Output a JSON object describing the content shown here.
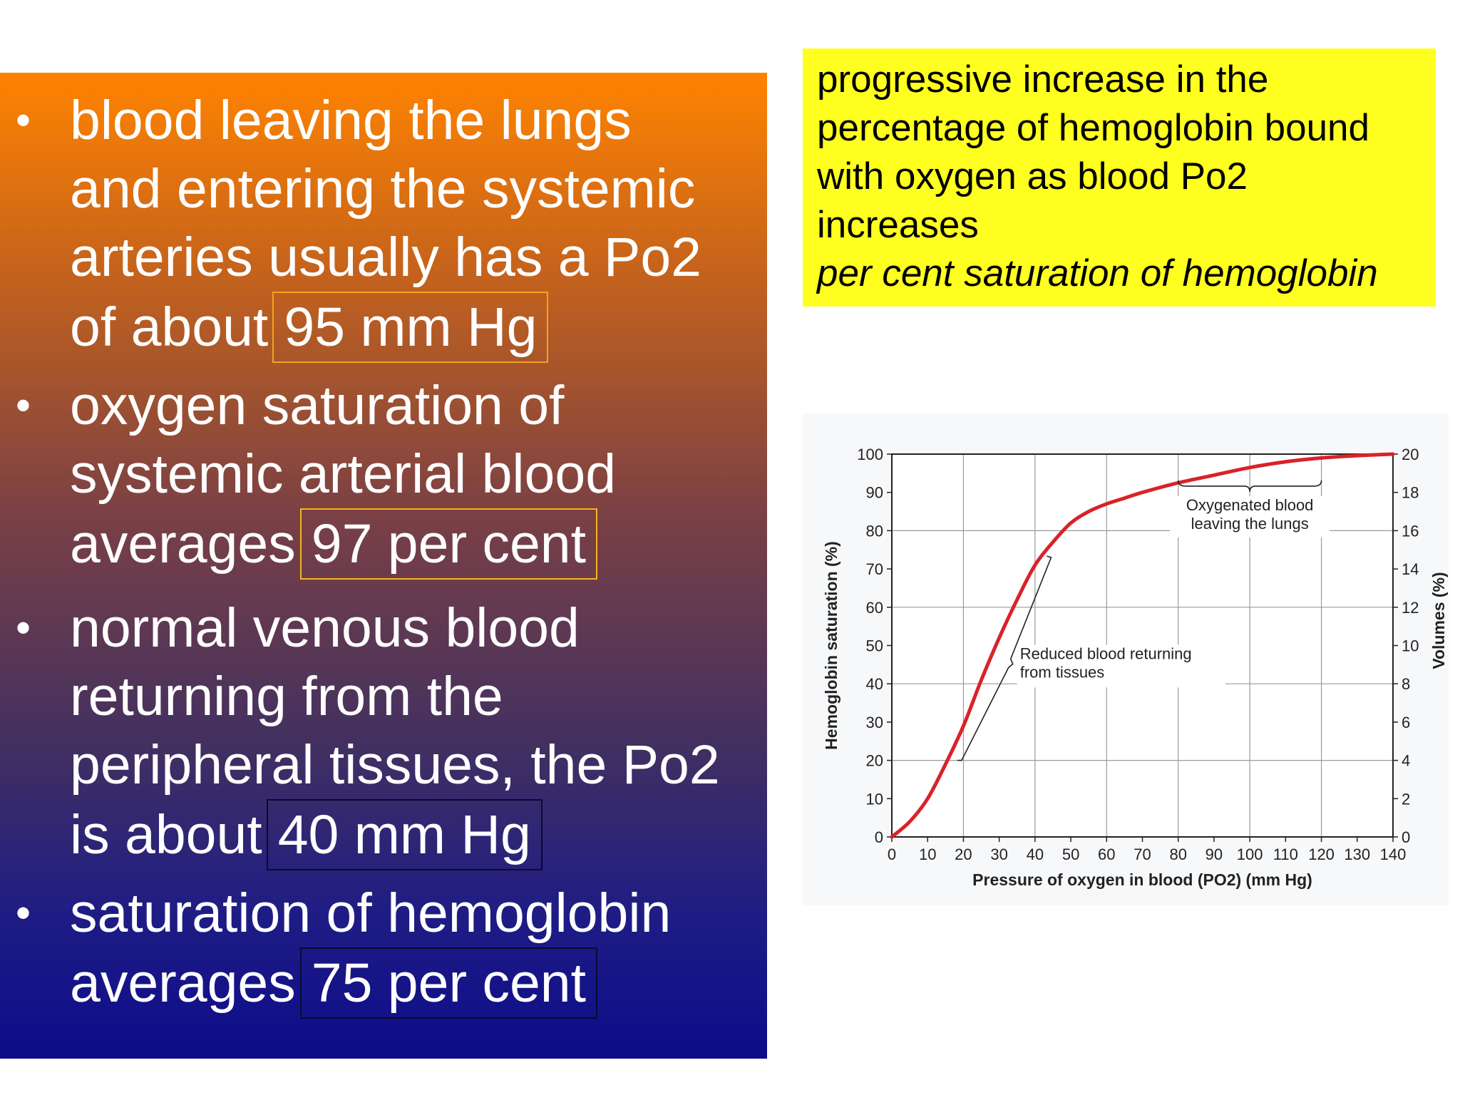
{
  "bullets": [
    {
      "lines": [
        "blood leaving the lungs",
        "and entering the systemic",
        "arteries usually has a Po2"
      ],
      "tail_prefix": "of about",
      "highlight": "95 mm Hg"
    },
    {
      "lines": [
        "oxygen saturation of",
        "systemic arterial blood"
      ],
      "tail_prefix": "averages",
      "highlight": "97 per cent"
    },
    {
      "lines": [
        "normal venous blood",
        "returning from the",
        "peripheral tissues, the Po2"
      ],
      "tail_prefix": "is about",
      "highlight": "40 mm Hg"
    },
    {
      "lines": [
        "saturation of hemoglobin"
      ],
      "tail_prefix": "averages",
      "highlight": "75 per cent"
    }
  ],
  "note": {
    "lines": [
      "progressive increase in the",
      "percentage of hemoglobin bound",
      "with oxygen as blood Po2",
      "increases"
    ],
    "italic_line": "per cent saturation of hemoglobin",
    "background_color": "#ffff1f"
  },
  "chart_data": {
    "type": "line",
    "title": "",
    "xlabel": "Pressure of oxygen in blood (PO2) (mm Hg)",
    "ylabel": "Hemoglobin saturation (%)",
    "y2label": "Volumes (%)",
    "xlim": [
      0,
      140
    ],
    "ylim": [
      0,
      100
    ],
    "y2lim": [
      0,
      20
    ],
    "xticks": [
      0,
      10,
      20,
      30,
      40,
      50,
      60,
      70,
      80,
      90,
      100,
      110,
      120,
      130,
      140
    ],
    "yticks": [
      0,
      10,
      20,
      30,
      40,
      50,
      60,
      70,
      80,
      90,
      100
    ],
    "y2ticks": [
      0,
      2,
      4,
      6,
      8,
      10,
      12,
      14,
      16,
      18,
      20
    ],
    "grid": true,
    "series": [
      {
        "name": "",
        "color": "#d92229",
        "x": [
          0,
          5,
          10,
          15,
          20,
          25,
          30,
          35,
          40,
          45,
          50,
          55,
          60,
          65,
          70,
          80,
          90,
          100,
          110,
          120,
          130,
          140
        ],
        "y": [
          0,
          4,
          10,
          19,
          29,
          41,
          52,
          62,
          71,
          77,
          82,
          85,
          87,
          88.5,
          90,
          92.5,
          94.5,
          96.5,
          98,
          99,
          99.6,
          100
        ]
      }
    ],
    "annotations": [
      {
        "lines": [
          "Oxygenated blood",
          "leaving the lungs"
        ],
        "range_x": [
          80,
          120
        ]
      },
      {
        "lines": [
          "Reduced blood returning",
          "from tissues"
        ],
        "range_y": [
          20,
          73
        ]
      }
    ]
  }
}
